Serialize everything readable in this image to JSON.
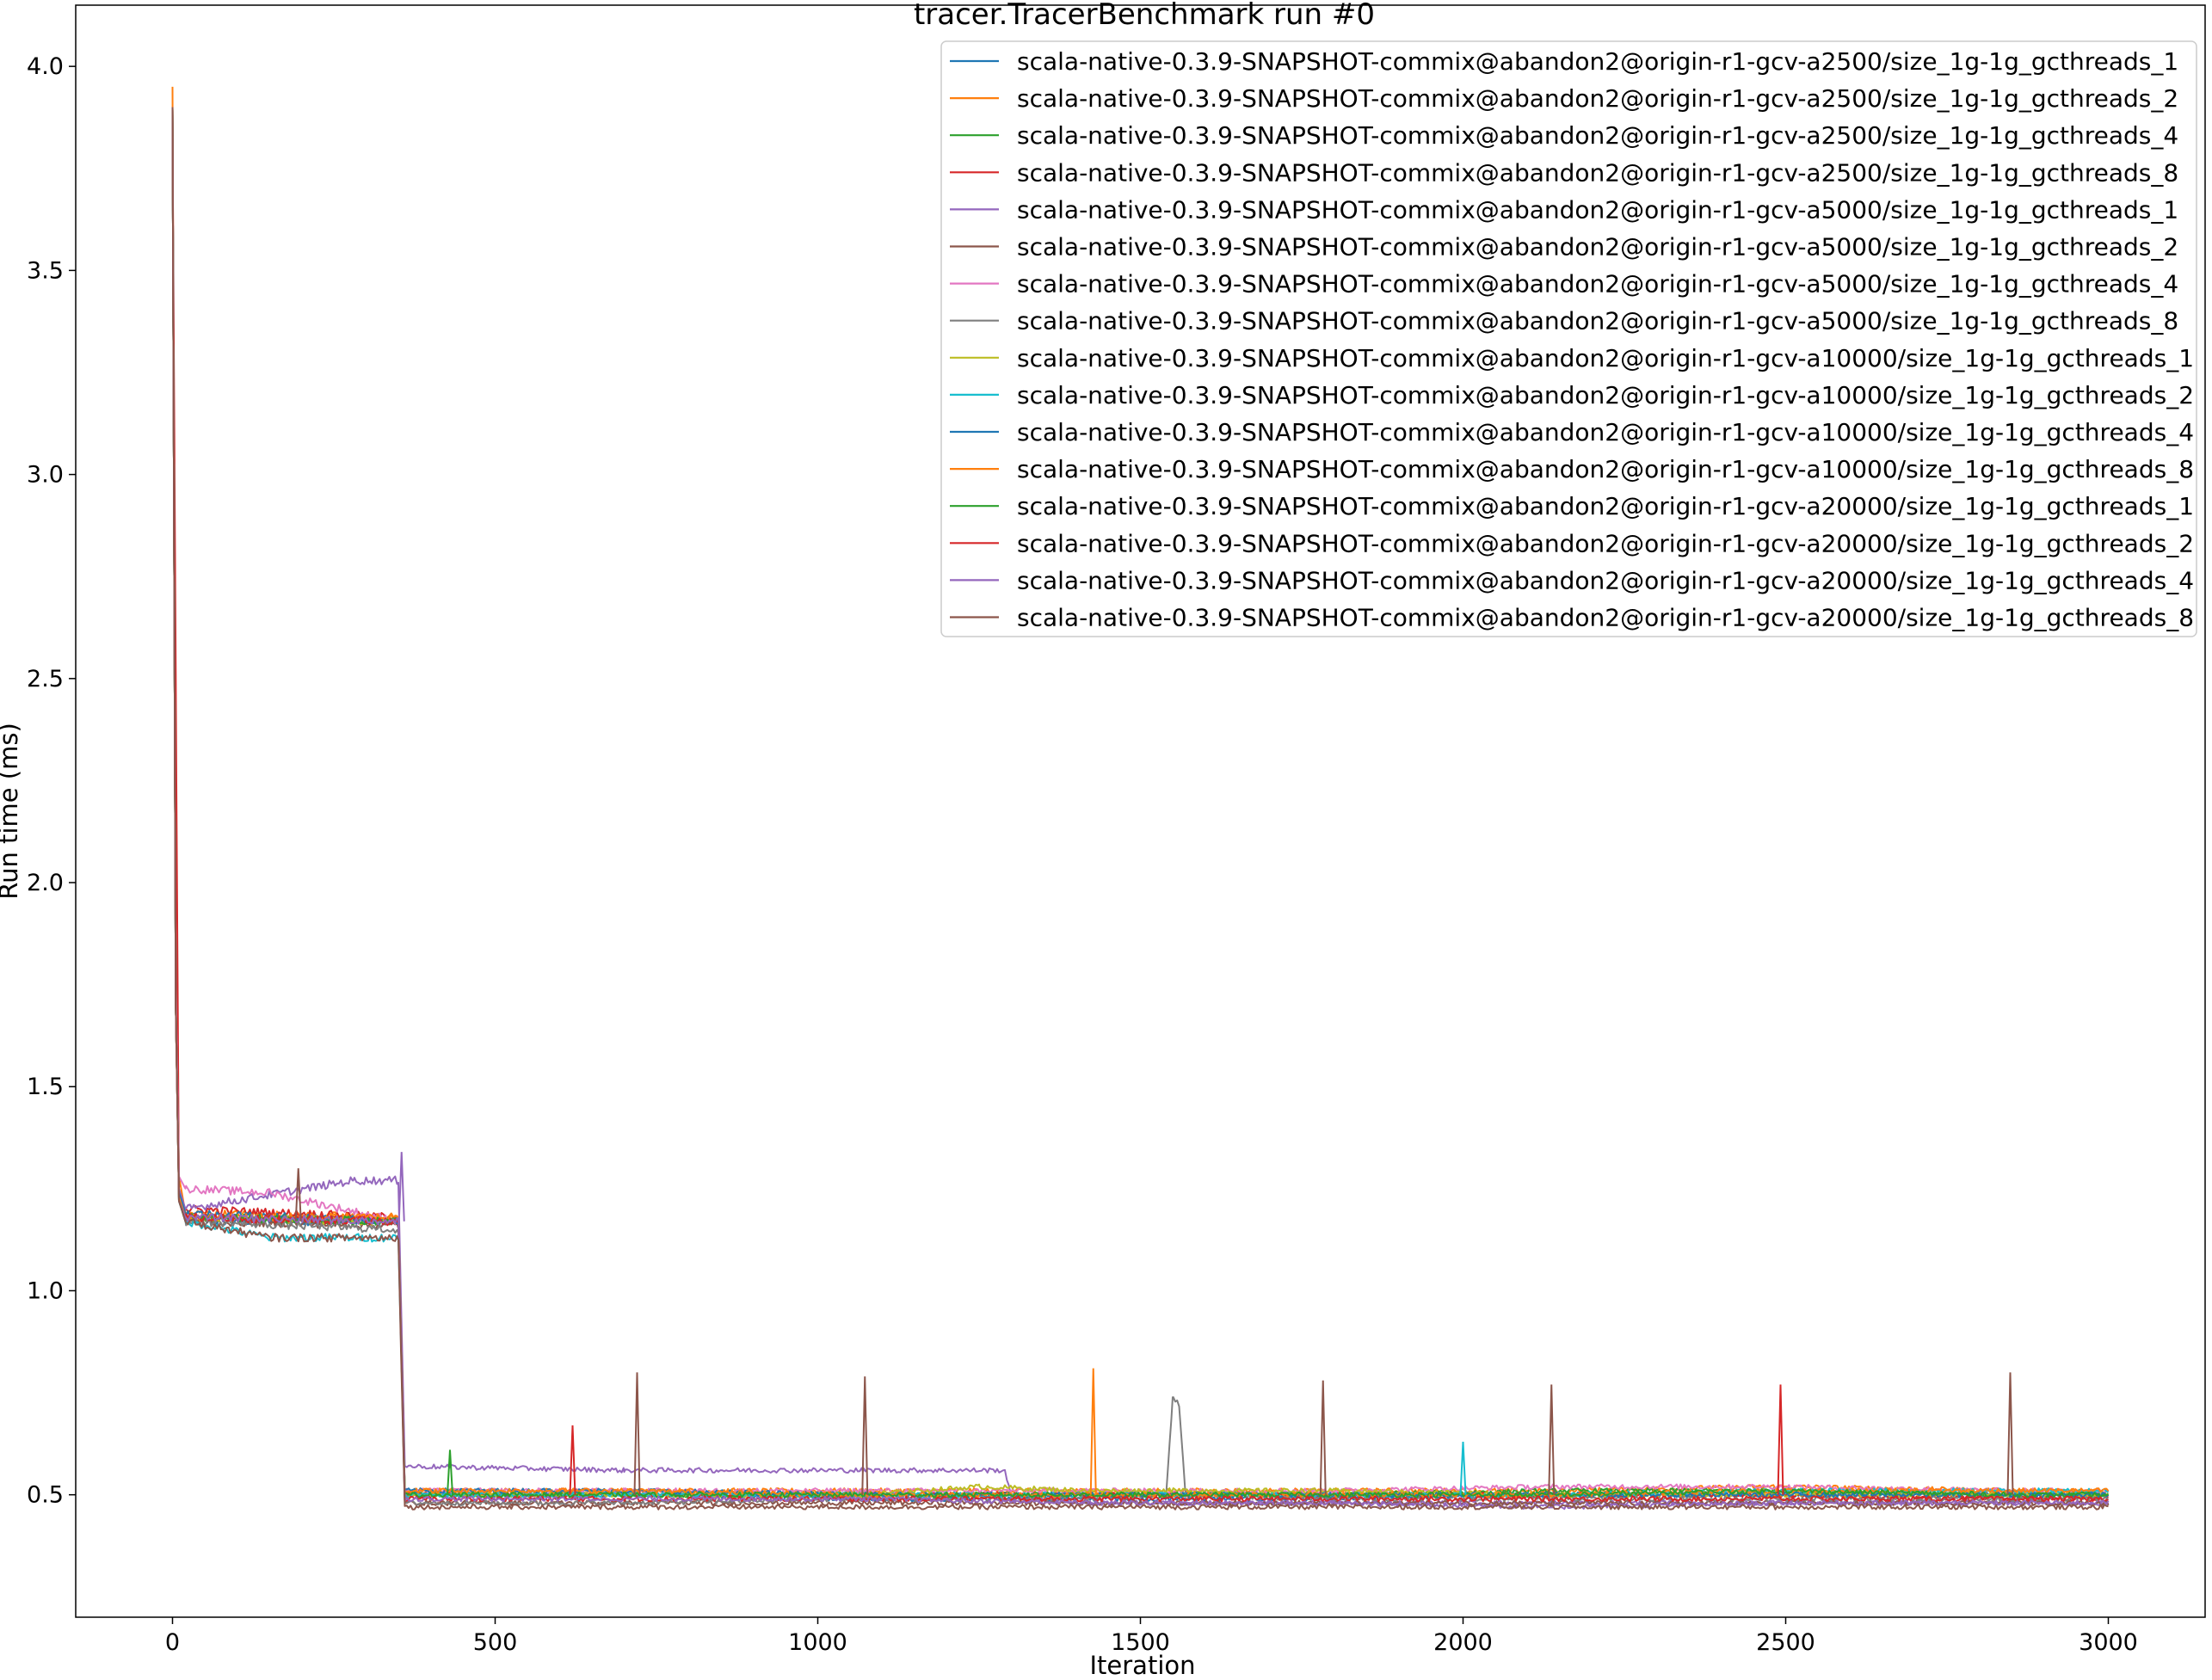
{
  "chart_data": {
    "type": "line",
    "title": "tracer.TracerBenchmark run #0",
    "xlabel": "Iteration",
    "ylabel": "Run time (ms)",
    "xlim": [
      -150,
      3150
    ],
    "ylim": [
      0.2,
      4.15
    ],
    "x_ticks": [
      "0",
      "500",
      "1000",
      "1500",
      "2000",
      "2500",
      "3000"
    ],
    "x_tick_values": [
      0,
      500,
      1000,
      1500,
      2000,
      2500,
      3000
    ],
    "y_ticks": [
      "0.5",
      "1.0",
      "1.5",
      "2.0",
      "2.5",
      "3.0",
      "3.5",
      "4.0"
    ],
    "y_tick_values": [
      0.5,
      1.0,
      1.5,
      2.0,
      2.5,
      3.0,
      3.5,
      4.0
    ],
    "grid": false,
    "legend_position": "top-right",
    "series": [
      {
        "name": "scala-native-0.3.9-SNAPSHOT-commix@abandon2@origin-r1-gcv-a2500/size_1g-1g_gcthreads_1",
        "color": "#1f77b4",
        "x": [
          0,
          5,
          10,
          20,
          350,
          360,
          700,
          1070,
          1420,
          1780,
          2140,
          2490,
          2850,
          3000
        ],
        "y": [
          3.9,
          1.7,
          1.25,
          1.17,
          1.17,
          0.5,
          0.5,
          0.49,
          0.49,
          0.49,
          0.5,
          0.5,
          0.5,
          0.5
        ]
      },
      {
        "name": "scala-native-0.3.9-SNAPSHOT-commix@abandon2@origin-r1-gcv-a2500/size_1g-1g_gcthreads_2",
        "color": "#ff7f0e",
        "x": [
          0,
          5,
          10,
          20,
          350,
          360,
          700,
          1070,
          1420,
          1780,
          2140,
          2490,
          2850,
          3000
        ],
        "y": [
          3.95,
          1.75,
          1.28,
          1.19,
          1.18,
          0.51,
          0.51,
          0.51,
          0.51,
          0.51,
          0.51,
          0.52,
          0.51,
          0.51
        ]
      },
      {
        "name": "scala-native-0.3.9-SNAPSHOT-commix@abandon2@origin-r1-gcv-a2500/size_1g-1g_gcthreads_4",
        "color": "#2ca02c",
        "x": [
          0,
          5,
          10,
          20,
          350,
          360,
          700,
          1070,
          1420,
          1780,
          2140,
          2490,
          2850,
          3000
        ],
        "y": [
          3.9,
          1.7,
          1.24,
          1.18,
          1.17,
          0.5,
          0.5,
          0.5,
          0.5,
          0.5,
          0.51,
          0.51,
          0.5,
          0.5
        ]
      },
      {
        "name": "scala-native-0.3.9-SNAPSHOT-commix@abandon2@origin-r1-gcv-a2500/size_1g-1g_gcthreads_8",
        "color": "#d62728",
        "x": [
          0,
          5,
          10,
          20,
          350,
          360,
          700,
          1070,
          1420,
          1780,
          2140,
          2490,
          2850,
          3000
        ],
        "y": [
          3.85,
          2.5,
          1.22,
          1.2,
          1.18,
          0.5,
          0.5,
          0.5,
          0.5,
          0.5,
          0.5,
          0.5,
          0.49,
          0.49
        ]
      },
      {
        "name": "scala-native-0.3.9-SNAPSHOT-commix@abandon2@origin-r1-gcv-a5000/size_1g-1g_gcthreads_1",
        "color": "#9467bd",
        "x": [
          0,
          5,
          10,
          20,
          280,
          350,
          360,
          700,
          1070,
          1290,
          1300,
          1420,
          1780,
          2140,
          2490,
          2850,
          3000
        ],
        "y": [
          3.9,
          1.7,
          1.25,
          1.2,
          1.27,
          1.27,
          0.57,
          0.56,
          0.56,
          0.56,
          0.49,
          0.48,
          0.48,
          0.48,
          0.48,
          0.48,
          0.48
        ]
      },
      {
        "name": "scala-native-0.3.9-SNAPSHOT-commix@abandon2@origin-r1-gcv-a5000/size_1g-1g_gcthreads_2",
        "color": "#8c564b",
        "x": [
          0,
          5,
          10,
          20,
          350,
          360,
          700,
          1070,
          1420,
          1780,
          2140,
          2490,
          2850,
          3000
        ],
        "y": [
          3.9,
          1.7,
          1.22,
          1.17,
          1.16,
          0.48,
          0.48,
          0.48,
          0.48,
          0.48,
          0.48,
          0.48,
          0.48,
          0.48
        ]
      },
      {
        "name": "scala-native-0.3.9-SNAPSHOT-commix@abandon2@origin-r1-gcv-a5000/size_1g-1g_gcthreads_4",
        "color": "#e377c2",
        "x": [
          0,
          5,
          10,
          20,
          150,
          350,
          360,
          700,
          1070,
          1420,
          1780,
          2140,
          2490,
          2850,
          3000
        ],
        "y": [
          3.9,
          1.75,
          1.28,
          1.25,
          1.24,
          1.17,
          0.51,
          0.51,
          0.51,
          0.51,
          0.51,
          0.52,
          0.52,
          0.51,
          0.51
        ]
      },
      {
        "name": "scala-native-0.3.9-SNAPSHOT-commix@abandon2@origin-r1-gcv-a5000/size_1g-1g_gcthreads_8",
        "color": "#7f7f7f",
        "x": [
          0,
          5,
          10,
          20,
          350,
          360,
          700,
          1070,
          1420,
          1540,
          1550,
          1560,
          1570,
          1780,
          2140,
          2490,
          2850,
          3000
        ],
        "y": [
          3.9,
          1.7,
          1.22,
          1.17,
          1.15,
          0.48,
          0.48,
          0.49,
          0.49,
          0.5,
          0.74,
          0.72,
          0.5,
          0.49,
          0.49,
          0.49,
          0.49,
          0.49
        ]
      },
      {
        "name": "scala-native-0.3.9-SNAPSHOT-commix@abandon2@origin-r1-gcv-a10000/size_1g-1g_gcthreads_1",
        "color": "#bcbd22",
        "x": [
          0,
          5,
          10,
          20,
          350,
          360,
          700,
          1070,
          1250,
          1420,
          1780,
          2140,
          2490,
          2850,
          3000
        ],
        "y": [
          3.9,
          1.7,
          1.22,
          1.18,
          1.17,
          0.5,
          0.5,
          0.5,
          0.52,
          0.51,
          0.51,
          0.5,
          0.5,
          0.5,
          0.5
        ]
      },
      {
        "name": "scala-native-0.3.9-SNAPSHOT-commix@abandon2@origin-r1-gcv-a10000/size_1g-1g_gcthreads_2",
        "color": "#17becf",
        "x": [
          0,
          5,
          10,
          20,
          150,
          350,
          360,
          700,
          1070,
          1420,
          1780,
          2000,
          2140,
          2490,
          2850,
          3000
        ],
        "y": [
          3.9,
          1.7,
          1.22,
          1.17,
          1.13,
          1.13,
          0.5,
          0.5,
          0.5,
          0.5,
          0.5,
          0.5,
          0.5,
          0.51,
          0.51,
          0.51
        ]
      },
      {
        "name": "scala-native-0.3.9-SNAPSHOT-commix@abandon2@origin-r1-gcv-a10000/size_1g-1g_gcthreads_4",
        "color": "#1f77b4",
        "x": [
          0,
          5,
          10,
          20,
          350,
          360,
          700,
          1070,
          1420,
          1780,
          2140,
          2490,
          2850,
          3000
        ],
        "y": [
          3.9,
          1.7,
          1.24,
          1.19,
          1.17,
          0.51,
          0.51,
          0.5,
          0.5,
          0.5,
          0.5,
          0.5,
          0.5,
          0.5
        ]
      },
      {
        "name": "scala-native-0.3.9-SNAPSHOT-commix@abandon2@origin-r1-gcv-a10000/size_1g-1g_gcthreads_8",
        "color": "#ff7f0e",
        "x": [
          0,
          5,
          10,
          20,
          350,
          360,
          700,
          1070,
          1420,
          1780,
          2140,
          2490,
          2850,
          3000
        ],
        "y": [
          3.9,
          1.7,
          1.23,
          1.18,
          1.18,
          0.51,
          0.51,
          0.5,
          0.5,
          0.5,
          0.5,
          0.51,
          0.51,
          0.51
        ]
      },
      {
        "name": "scala-native-0.3.9-SNAPSHOT-commix@abandon2@origin-r1-gcv-a20000/size_1g-1g_gcthreads_1",
        "color": "#2ca02c",
        "x": [
          0,
          5,
          10,
          20,
          350,
          360,
          700,
          1070,
          1420,
          1780,
          2140,
          2490,
          2850,
          3000
        ],
        "y": [
          3.9,
          1.7,
          1.22,
          1.18,
          1.17,
          0.5,
          0.5,
          0.5,
          0.5,
          0.5,
          0.5,
          0.51,
          0.5,
          0.5
        ]
      },
      {
        "name": "scala-native-0.3.9-SNAPSHOT-commix@abandon2@origin-r1-gcv-a20000/size_1g-1g_gcthreads_2",
        "color": "#d62728",
        "x": [
          0,
          5,
          10,
          20,
          350,
          360,
          700,
          1070,
          1420,
          1780,
          2140,
          2490,
          2850,
          3000
        ],
        "y": [
          3.9,
          1.7,
          1.22,
          1.18,
          1.17,
          0.49,
          0.49,
          0.49,
          0.49,
          0.49,
          0.49,
          0.49,
          0.49,
          0.49
        ]
      },
      {
        "name": "scala-native-0.3.9-SNAPSHOT-commix@abandon2@origin-r1-gcv-a20000/size_1g-1g_gcthreads_4",
        "color": "#9467bd",
        "x": [
          0,
          5,
          10,
          20,
          350,
          360,
          700,
          1070,
          1420,
          1780,
          2140,
          2490,
          2850,
          3000
        ],
        "y": [
          3.9,
          1.7,
          1.22,
          1.18,
          1.17,
          0.49,
          0.49,
          0.49,
          0.48,
          0.48,
          0.47,
          0.48,
          0.48,
          0.48
        ]
      },
      {
        "name": "scala-native-0.3.9-SNAPSHOT-commix@abandon2@origin-r1-gcv-a20000/size_1g-1g_gcthreads_8",
        "color": "#8c564b",
        "x": [
          0,
          5,
          10,
          20,
          150,
          350,
          360,
          700,
          1070,
          1420,
          1780,
          2140,
          2490,
          2850,
          3000
        ],
        "y": [
          3.9,
          1.7,
          1.22,
          1.17,
          1.13,
          1.13,
          0.47,
          0.47,
          0.47,
          0.47,
          0.47,
          0.47,
          0.47,
          0.47,
          0.47
        ]
      }
    ],
    "spikes": [
      {
        "x": 720,
        "y": 0.8,
        "color": "#8c564b"
      },
      {
        "x": 1073,
        "y": 0.79,
        "color": "#8c564b"
      },
      {
        "x": 1427,
        "y": 0.81,
        "color": "#ff7f0e"
      },
      {
        "x": 1783,
        "y": 0.78,
        "color": "#8c564b"
      },
      {
        "x": 2137,
        "y": 0.77,
        "color": "#8c564b"
      },
      {
        "x": 2492,
        "y": 0.77,
        "color": "#d62728"
      },
      {
        "x": 2848,
        "y": 0.8,
        "color": "#8c564b"
      },
      {
        "x": 620,
        "y": 0.67,
        "color": "#d62728"
      },
      {
        "x": 430,
        "y": 0.61,
        "color": "#2ca02c"
      },
      {
        "x": 2000,
        "y": 0.63,
        "color": "#17becf"
      },
      {
        "x": 195,
        "y": 1.3,
        "color": "#8c564b"
      },
      {
        "x": 355,
        "y": 1.34,
        "color": "#9467bd"
      }
    ]
  }
}
